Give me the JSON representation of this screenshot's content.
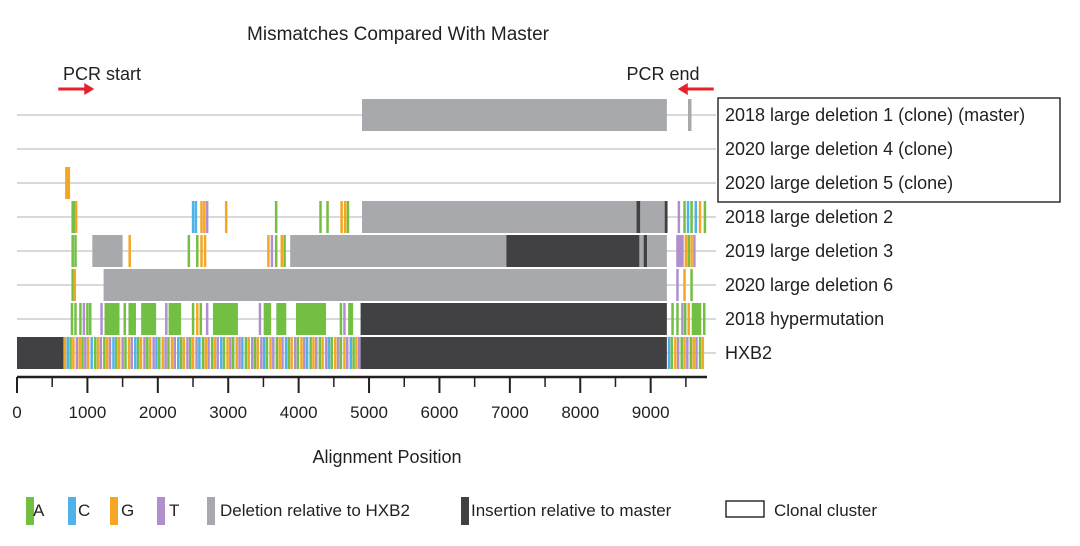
{
  "chart_data": {
    "type": "alignment-mismatch-plot",
    "title": "Mismatches Compared With Master",
    "xlabel": "Alignment Position",
    "xlim": [
      0,
      9800
    ],
    "x_ticks": [
      0,
      1000,
      2000,
      3000,
      4000,
      5000,
      6000,
      7000,
      8000,
      9000
    ],
    "x_tick_labels": [
      "0",
      "1000",
      "2000",
      "3000",
      "4000",
      "5000",
      "6000",
      "7000",
      "8000",
      "9000"
    ],
    "pcr_start": {
      "label": "PCR start",
      "position": 700
    },
    "pcr_end": {
      "label": "PCR end",
      "position": 9640
    },
    "clonal_cluster_rows": [
      0,
      1,
      2
    ],
    "colors": {
      "A": "#72bf44",
      "C": "#4fb3e8",
      "G": "#f5a623",
      "T": "#b08fcf",
      "deletion": "#a7a9ac",
      "insertion": "#414042",
      "row_line": "#d9d9d9",
      "arrow": "#e6212a",
      "axis": "#231f20"
    },
    "sequences": [
      {
        "name": "2018 large deletion 1 (clone) (master)",
        "blocks": [
          {
            "type": "deletion",
            "start": 4900,
            "end": 9230
          },
          {
            "type": "deletion",
            "start": 9530,
            "end": 9580
          }
        ],
        "mismatches": []
      },
      {
        "name": "2020 large deletion 4 (clone)",
        "blocks": [],
        "mismatches": []
      },
      {
        "name": "2020 large deletion 5 (clone)",
        "blocks": [],
        "mismatches": [
          {
            "pos": 700,
            "base": "G",
            "span": 2
          }
        ]
      },
      {
        "name": "2018 large deletion 2",
        "blocks": [
          {
            "type": "deletion",
            "start": 4900,
            "end": 9230
          },
          {
            "type": "insertion",
            "start": 8800,
            "end": 8850
          },
          {
            "type": "insertion",
            "start": 9200,
            "end": 9240
          }
        ],
        "mismatches": [
          {
            "pos": 790,
            "base": "A"
          },
          {
            "pos": 820,
            "base": "A"
          },
          {
            "pos": 840,
            "base": "G"
          },
          {
            "pos": 2500,
            "base": "C"
          },
          {
            "pos": 2540,
            "base": "C"
          },
          {
            "pos": 2620,
            "base": "G"
          },
          {
            "pos": 2660,
            "base": "G"
          },
          {
            "pos": 2700,
            "base": "T"
          },
          {
            "pos": 2970,
            "base": "G"
          },
          {
            "pos": 3680,
            "base": "A"
          },
          {
            "pos": 4310,
            "base": "A"
          },
          {
            "pos": 4410,
            "base": "A"
          },
          {
            "pos": 4610,
            "base": "G"
          },
          {
            "pos": 4660,
            "base": "G"
          },
          {
            "pos": 4700,
            "base": "A"
          },
          {
            "pos": 9400,
            "base": "T"
          },
          {
            "pos": 9480,
            "base": "A"
          },
          {
            "pos": 9530,
            "base": "C"
          },
          {
            "pos": 9580,
            "base": "A"
          },
          {
            "pos": 9640,
            "base": "C"
          },
          {
            "pos": 9700,
            "base": "G"
          },
          {
            "pos": 9770,
            "base": "A"
          }
        ]
      },
      {
        "name": "2019 large deletion 3",
        "blocks": [
          {
            "type": "deletion",
            "start": 1070,
            "end": 1500
          },
          {
            "type": "deletion",
            "start": 3880,
            "end": 6950
          },
          {
            "type": "insertion",
            "start": 6950,
            "end": 8840
          },
          {
            "type": "deletion",
            "start": 8840,
            "end": 8900
          },
          {
            "type": "insertion",
            "start": 8900,
            "end": 8950
          },
          {
            "type": "deletion",
            "start": 8950,
            "end": 9230
          }
        ],
        "mismatches": [
          {
            "pos": 790,
            "base": "A"
          },
          {
            "pos": 830,
            "base": "A"
          },
          {
            "pos": 1600,
            "base": "G"
          },
          {
            "pos": 2440,
            "base": "A"
          },
          {
            "pos": 2560,
            "base": "A"
          },
          {
            "pos": 2620,
            "base": "G"
          },
          {
            "pos": 2670,
            "base": "G"
          },
          {
            "pos": 3570,
            "base": "G"
          },
          {
            "pos": 3620,
            "base": "T"
          },
          {
            "pos": 3680,
            "base": "A"
          },
          {
            "pos": 3760,
            "base": "G"
          },
          {
            "pos": 3800,
            "base": "A"
          },
          {
            "pos": 9380,
            "base": "T",
            "span": 3
          },
          {
            "pos": 9500,
            "base": "G"
          },
          {
            "pos": 9540,
            "base": "A"
          },
          {
            "pos": 9580,
            "base": "G"
          },
          {
            "pos": 9620,
            "base": "T"
          }
        ]
      },
      {
        "name": "2020 large deletion 6",
        "blocks": [
          {
            "type": "deletion",
            "start": 1230,
            "end": 9230
          }
        ],
        "mismatches": [
          {
            "pos": 790,
            "base": "A"
          },
          {
            "pos": 820,
            "base": "G"
          },
          {
            "pos": 9380,
            "base": "T"
          },
          {
            "pos": 9480,
            "base": "G"
          },
          {
            "pos": 9580,
            "base": "A"
          }
        ]
      },
      {
        "name": "2018 hypermutation",
        "blocks": [
          {
            "type": "insertion",
            "start": 4880,
            "end": 9230
          }
        ],
        "mismatches": [
          {
            "pos": 780,
            "base": "A"
          },
          {
            "pos": 830,
            "base": "A"
          },
          {
            "pos": 900,
            "base": "A"
          },
          {
            "pos": 950,
            "base": "T"
          },
          {
            "pos": 1000,
            "base": "A"
          },
          {
            "pos": 1040,
            "base": "A"
          },
          {
            "pos": 1200,
            "base": "T"
          },
          {
            "pos": 1260,
            "base": "A",
            "span": 6
          },
          {
            "pos": 1530,
            "base": "A"
          },
          {
            "pos": 1600,
            "base": "A",
            "span": 3
          },
          {
            "pos": 1780,
            "base": "A",
            "span": 6
          },
          {
            "pos": 2120,
            "base": "T"
          },
          {
            "pos": 2170,
            "base": "A",
            "span": 5
          },
          {
            "pos": 2500,
            "base": "A"
          },
          {
            "pos": 2560,
            "base": "G"
          },
          {
            "pos": 2610,
            "base": "A"
          },
          {
            "pos": 2700,
            "base": "T"
          },
          {
            "pos": 2800,
            "base": "A",
            "span": 10
          },
          {
            "pos": 3450,
            "base": "T"
          },
          {
            "pos": 3520,
            "base": "A",
            "span": 3
          },
          {
            "pos": 3700,
            "base": "A",
            "span": 4
          },
          {
            "pos": 3980,
            "base": "A",
            "span": 12
          },
          {
            "pos": 4600,
            "base": "A"
          },
          {
            "pos": 4650,
            "base": "T"
          },
          {
            "pos": 4720,
            "base": "A",
            "span": 2
          },
          {
            "pos": 9310,
            "base": "A"
          },
          {
            "pos": 9380,
            "base": "A"
          },
          {
            "pos": 9450,
            "base": "T"
          },
          {
            "pos": 9490,
            "base": "A"
          },
          {
            "pos": 9540,
            "base": "G"
          },
          {
            "pos": 9600,
            "base": "A",
            "span": 3
          },
          {
            "pos": 9700,
            "base": "A"
          },
          {
            "pos": 9760,
            "base": "A"
          }
        ]
      },
      {
        "name": "HXB2",
        "blocks": [
          {
            "type": "insertion",
            "start": 0,
            "end": 660
          },
          {
            "type": "insertion",
            "start": 4880,
            "end": 9230
          }
        ],
        "mismatches": [
          {
            "pos": 680,
            "base": "G"
          },
          {
            "pos": 720,
            "base": "C"
          },
          {
            "pos": 760,
            "base": "A"
          },
          {
            "pos": 800,
            "base": "G"
          },
          {
            "pos": 850,
            "base": "T"
          },
          {
            "pos": 890,
            "base": "G"
          },
          {
            "pos": 930,
            "base": "A"
          },
          {
            "pos": 970,
            "base": "T"
          },
          {
            "pos": 1010,
            "base": "G"
          },
          {
            "pos": 1060,
            "base": "C"
          },
          {
            "pos": 1110,
            "base": "A"
          },
          {
            "pos": 1150,
            "base": "G"
          },
          {
            "pos": 1190,
            "base": "T"
          },
          {
            "pos": 1240,
            "base": "A"
          },
          {
            "pos": 1280,
            "base": "G"
          },
          {
            "pos": 1320,
            "base": "T"
          },
          {
            "pos": 1370,
            "base": "C"
          },
          {
            "pos": 1410,
            "base": "A"
          },
          {
            "pos": 1450,
            "base": "G"
          },
          {
            "pos": 1500,
            "base": "T"
          },
          {
            "pos": 1540,
            "base": "A"
          },
          {
            "pos": 1590,
            "base": "G"
          },
          {
            "pos": 1630,
            "base": "T"
          },
          {
            "pos": 1680,
            "base": "C"
          },
          {
            "pos": 1720,
            "base": "A"
          },
          {
            "pos": 1760,
            "base": "G"
          },
          {
            "pos": 1810,
            "base": "T"
          },
          {
            "pos": 1850,
            "base": "A"
          },
          {
            "pos": 1890,
            "base": "G"
          },
          {
            "pos": 1940,
            "base": "T"
          },
          {
            "pos": 1980,
            "base": "C"
          },
          {
            "pos": 2020,
            "base": "A"
          },
          {
            "pos": 2070,
            "base": "G"
          },
          {
            "pos": 2110,
            "base": "T"
          },
          {
            "pos": 2150,
            "base": "A"
          },
          {
            "pos": 2200,
            "base": "G"
          },
          {
            "pos": 2240,
            "base": "T"
          },
          {
            "pos": 2290,
            "base": "C"
          },
          {
            "pos": 2330,
            "base": "A"
          },
          {
            "pos": 2370,
            "base": "G"
          },
          {
            "pos": 2420,
            "base": "T"
          },
          {
            "pos": 2460,
            "base": "A"
          },
          {
            "pos": 2500,
            "base": "G"
          },
          {
            "pos": 2550,
            "base": "T"
          },
          {
            "pos": 2590,
            "base": "C"
          },
          {
            "pos": 2640,
            "base": "A"
          },
          {
            "pos": 2680,
            "base": "G"
          },
          {
            "pos": 2720,
            "base": "T"
          },
          {
            "pos": 2770,
            "base": "A"
          },
          {
            "pos": 2810,
            "base": "G"
          },
          {
            "pos": 2850,
            "base": "T"
          },
          {
            "pos": 2900,
            "base": "C"
          },
          {
            "pos": 2940,
            "base": "A"
          },
          {
            "pos": 2990,
            "base": "G"
          },
          {
            "pos": 3030,
            "base": "T"
          },
          {
            "pos": 3070,
            "base": "A"
          },
          {
            "pos": 3120,
            "base": "G"
          },
          {
            "pos": 3160,
            "base": "T"
          },
          {
            "pos": 3200,
            "base": "C"
          },
          {
            "pos": 3250,
            "base": "A"
          },
          {
            "pos": 3290,
            "base": "G"
          },
          {
            "pos": 3340,
            "base": "T"
          },
          {
            "pos": 3380,
            "base": "A"
          },
          {
            "pos": 3420,
            "base": "G"
          },
          {
            "pos": 3470,
            "base": "T"
          },
          {
            "pos": 3510,
            "base": "C"
          },
          {
            "pos": 3550,
            "base": "A"
          },
          {
            "pos": 3600,
            "base": "G"
          },
          {
            "pos": 3640,
            "base": "T"
          },
          {
            "pos": 3690,
            "base": "A"
          },
          {
            "pos": 3730,
            "base": "G"
          },
          {
            "pos": 3770,
            "base": "T"
          },
          {
            "pos": 3820,
            "base": "C"
          },
          {
            "pos": 3860,
            "base": "A"
          },
          {
            "pos": 3900,
            "base": "G"
          },
          {
            "pos": 3950,
            "base": "T"
          },
          {
            "pos": 3990,
            "base": "A"
          },
          {
            "pos": 4040,
            "base": "G"
          },
          {
            "pos": 4080,
            "base": "T"
          },
          {
            "pos": 4120,
            "base": "C"
          },
          {
            "pos": 4170,
            "base": "A"
          },
          {
            "pos": 4210,
            "base": "G"
          },
          {
            "pos": 4250,
            "base": "T"
          },
          {
            "pos": 4300,
            "base": "A"
          },
          {
            "pos": 4340,
            "base": "G"
          },
          {
            "pos": 4390,
            "base": "T"
          },
          {
            "pos": 4430,
            "base": "C"
          },
          {
            "pos": 4470,
            "base": "A"
          },
          {
            "pos": 4520,
            "base": "G"
          },
          {
            "pos": 4560,
            "base": "T"
          },
          {
            "pos": 4600,
            "base": "A"
          },
          {
            "pos": 4650,
            "base": "G"
          },
          {
            "pos": 4690,
            "base": "T"
          },
          {
            "pos": 4740,
            "base": "C"
          },
          {
            "pos": 4780,
            "base": "A"
          },
          {
            "pos": 4820,
            "base": "G"
          },
          {
            "pos": 4860,
            "base": "T"
          },
          {
            "pos": 9260,
            "base": "C"
          },
          {
            "pos": 9300,
            "base": "A"
          },
          {
            "pos": 9350,
            "base": "G"
          },
          {
            "pos": 9390,
            "base": "T"
          },
          {
            "pos": 9440,
            "base": "A"
          },
          {
            "pos": 9480,
            "base": "G"
          },
          {
            "pos": 9520,
            "base": "T"
          },
          {
            "pos": 9570,
            "base": "A"
          },
          {
            "pos": 9610,
            "base": "G"
          },
          {
            "pos": 9650,
            "base": "T"
          },
          {
            "pos": 9700,
            "base": "A"
          },
          {
            "pos": 9740,
            "base": "G"
          }
        ]
      }
    ],
    "legend": [
      {
        "key": "A",
        "label": "A"
      },
      {
        "key": "C",
        "label": "C"
      },
      {
        "key": "G",
        "label": "G"
      },
      {
        "key": "T",
        "label": "T"
      },
      {
        "key": "deletion",
        "label": "Deletion relative to HXB2"
      },
      {
        "key": "insertion",
        "label": "Insertion relative to master"
      },
      {
        "key": "cluster",
        "label": "Clonal cluster"
      }
    ]
  }
}
